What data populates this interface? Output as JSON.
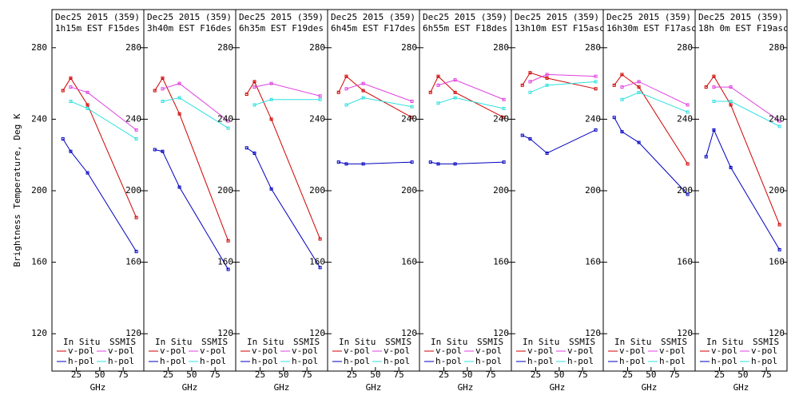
{
  "chart_data": [
    {
      "type": "line",
      "title": "Dec25 2015 (359)",
      "subtitle": "1h15m EST F15des",
      "ylabel": "Brightness Temperature, Deg K",
      "xlabel": "GHz",
      "xlim": [
        -1,
        97
      ],
      "xticks": [
        25,
        50,
        75
      ],
      "ylim": [
        100,
        300
      ],
      "yticks": [
        120,
        160,
        200,
        240,
        280
      ],
      "series_groups": [
        {
          "name": "In Situ",
          "series": [
            {
              "name": "v-pol",
              "color": "#d00000",
              "x": [
                10.7,
                19,
                37,
                89
              ],
              "values": [
                256,
                263,
                248,
                185
              ]
            },
            {
              "name": "h-pol",
              "color": "#0000c0",
              "x": [
                10.7,
                19,
                37,
                89
              ],
              "values": [
                229,
                222,
                210,
                166
              ]
            }
          ]
        },
        {
          "name": "SSMIS",
          "series": [
            {
              "name": "v-pol",
              "color": "#e040e0",
              "x": [
                19,
                37,
                89
              ],
              "values": [
                258,
                255,
                234
              ]
            },
            {
              "name": "h-pol",
              "color": "#30e0e0",
              "x": [
                19,
                37,
                89
              ],
              "values": [
                250,
                246,
                229
              ]
            }
          ]
        }
      ]
    },
    {
      "type": "line",
      "title": "Dec25 2015 (359)",
      "subtitle": "3h40m EST F16des",
      "xlabel": "GHz",
      "xlim": [
        -1,
        97
      ],
      "xticks": [
        25,
        50,
        75
      ],
      "ylim": [
        100,
        300
      ],
      "yticks": [
        120,
        160,
        200,
        240,
        280
      ],
      "series_groups": [
        {
          "name": "In Situ",
          "series": [
            {
              "name": "v-pol",
              "color": "#d00000",
              "x": [
                10.7,
                19,
                37,
                89
              ],
              "values": [
                256,
                263,
                243,
                172
              ]
            },
            {
              "name": "h-pol",
              "color": "#0000c0",
              "x": [
                10.7,
                19,
                37,
                89
              ],
              "values": [
                223,
                222,
                202,
                156
              ]
            }
          ]
        },
        {
          "name": "SSMIS",
          "series": [
            {
              "name": "v-pol",
              "color": "#e040e0",
              "x": [
                19,
                37,
                89
              ],
              "values": [
                257,
                260,
                239
              ]
            },
            {
              "name": "h-pol",
              "color": "#30e0e0",
              "x": [
                19,
                37,
                89
              ],
              "values": [
                250,
                252,
                235
              ]
            }
          ]
        }
      ]
    },
    {
      "type": "line",
      "title": "Dec25 2015 (359)",
      "subtitle": "6h35m EST F19des",
      "xlabel": "GHz",
      "xlim": [
        -1,
        97
      ],
      "xticks": [
        25,
        50,
        75
      ],
      "ylim": [
        100,
        300
      ],
      "yticks": [
        120,
        160,
        200,
        240,
        280
      ],
      "series_groups": [
        {
          "name": "In Situ",
          "series": [
            {
              "name": "v-pol",
              "color": "#d00000",
              "x": [
                10.7,
                19,
                37,
                89
              ],
              "values": [
                254,
                261,
                240,
                173
              ]
            },
            {
              "name": "h-pol",
              "color": "#0000c0",
              "x": [
                10.7,
                19,
                37,
                89
              ],
              "values": [
                224,
                221,
                201,
                157
              ]
            }
          ]
        },
        {
          "name": "SSMIS",
          "series": [
            {
              "name": "v-pol",
              "color": "#e040e0",
              "x": [
                19,
                37,
                89
              ],
              "values": [
                258,
                260,
                253
              ]
            },
            {
              "name": "h-pol",
              "color": "#30e0e0",
              "x": [
                19,
                37,
                89
              ],
              "values": [
                248,
                251,
                251
              ]
            }
          ]
        }
      ]
    },
    {
      "type": "line",
      "title": "Dec25 2015 (359)",
      "subtitle": "6h45m EST F17des",
      "xlabel": "GHz",
      "xlim": [
        -1,
        97
      ],
      "xticks": [
        25,
        50,
        75
      ],
      "ylim": [
        100,
        300
      ],
      "yticks": [
        120,
        160,
        200,
        240,
        280
      ],
      "series_groups": [
        {
          "name": "In Situ",
          "series": [
            {
              "name": "v-pol",
              "color": "#d00000",
              "x": [
                10.7,
                19,
                37,
                89
              ],
              "values": [
                255,
                264,
                256,
                241
              ]
            },
            {
              "name": "h-pol",
              "color": "#0000c0",
              "x": [
                10.7,
                19,
                37,
                89
              ],
              "values": [
                216,
                215,
                215,
                216
              ]
            }
          ]
        },
        {
          "name": "SSMIS",
          "series": [
            {
              "name": "v-pol",
              "color": "#e040e0",
              "x": [
                19,
                37,
                89
              ],
              "values": [
                257,
                260,
                250
              ]
            },
            {
              "name": "h-pol",
              "color": "#30e0e0",
              "x": [
                19,
                37,
                89
              ],
              "values": [
                248,
                252,
                247
              ]
            }
          ]
        }
      ]
    },
    {
      "type": "line",
      "title": "Dec25 2015 (359)",
      "subtitle": "6h55m EST F18des",
      "xlabel": "GHz",
      "xlim": [
        -1,
        97
      ],
      "xticks": [
        25,
        50,
        75
      ],
      "ylim": [
        100,
        300
      ],
      "yticks": [
        120,
        160,
        200,
        240,
        280
      ],
      "series_groups": [
        {
          "name": "In Situ",
          "series": [
            {
              "name": "v-pol",
              "color": "#d00000",
              "x": [
                10.7,
                19,
                37,
                89
              ],
              "values": [
                255,
                264,
                255,
                241
              ]
            },
            {
              "name": "h-pol",
              "color": "#0000c0",
              "x": [
                10.7,
                19,
                37,
                89
              ],
              "values": [
                216,
                215,
                215,
                216
              ]
            }
          ]
        },
        {
          "name": "SSMIS",
          "series": [
            {
              "name": "v-pol",
              "color": "#e040e0",
              "x": [
                19,
                37,
                89
              ],
              "values": [
                259,
                262,
                251
              ]
            },
            {
              "name": "h-pol",
              "color": "#30e0e0",
              "x": [
                19,
                37,
                89
              ],
              "values": [
                249,
                252,
                246
              ]
            }
          ]
        }
      ]
    },
    {
      "type": "line",
      "title": "Dec25 2015 (359)",
      "subtitle": "13h10m EST F15asc",
      "xlabel": "GHz",
      "xlim": [
        -1,
        97
      ],
      "xticks": [
        25,
        50,
        75
      ],
      "ylim": [
        100,
        300
      ],
      "yticks": [
        120,
        160,
        200,
        240,
        280
      ],
      "series_groups": [
        {
          "name": "In Situ",
          "series": [
            {
              "name": "v-pol",
              "color": "#d00000",
              "x": [
                10.7,
                19,
                37,
                89
              ],
              "values": [
                259,
                266,
                263,
                257
              ]
            },
            {
              "name": "h-pol",
              "color": "#0000c0",
              "x": [
                10.7,
                19,
                37,
                89
              ],
              "values": [
                231,
                229,
                221,
                234
              ]
            }
          ]
        },
        {
          "name": "SSMIS",
          "series": [
            {
              "name": "v-pol",
              "color": "#e040e0",
              "x": [
                19,
                37,
                89
              ],
              "values": [
                261,
                265,
                264
              ]
            },
            {
              "name": "h-pol",
              "color": "#30e0e0",
              "x": [
                19,
                37,
                89
              ],
              "values": [
                255,
                259,
                261
              ]
            }
          ]
        }
      ]
    },
    {
      "type": "line",
      "title": "Dec25 2015 (359)",
      "subtitle": "16h30m EST F17asc",
      "xlabel": "GHz",
      "xlim": [
        -1,
        97
      ],
      "xticks": [
        25,
        50,
        75
      ],
      "ylim": [
        100,
        300
      ],
      "yticks": [
        120,
        160,
        200,
        240,
        280
      ],
      "series_groups": [
        {
          "name": "In Situ",
          "series": [
            {
              "name": "v-pol",
              "color": "#d00000",
              "x": [
                10.7,
                19,
                37,
                89
              ],
              "values": [
                259,
                265,
                258,
                215
              ]
            },
            {
              "name": "h-pol",
              "color": "#0000c0",
              "x": [
                10.7,
                19,
                37,
                89
              ],
              "values": [
                241,
                233,
                227,
                198
              ]
            }
          ]
        },
        {
          "name": "SSMIS",
          "series": [
            {
              "name": "v-pol",
              "color": "#e040e0",
              "x": [
                19,
                37,
                89
              ],
              "values": [
                258,
                261,
                248
              ]
            },
            {
              "name": "h-pol",
              "color": "#30e0e0",
              "x": [
                19,
                37,
                89
              ],
              "values": [
                251,
                255,
                244
              ]
            }
          ]
        }
      ]
    },
    {
      "type": "line",
      "title": "Dec25 2015 (359)",
      "subtitle": "18h 0m EST F19asc",
      "xlabel": "GHz",
      "xlim": [
        -1,
        97
      ],
      "xticks": [
        25,
        50,
        75
      ],
      "ylim": [
        100,
        300
      ],
      "yticks": [
        120,
        160,
        200,
        240,
        280
      ],
      "series_groups": [
        {
          "name": "In Situ",
          "series": [
            {
              "name": "v-pol",
              "color": "#d00000",
              "x": [
                10.7,
                19,
                37,
                89
              ],
              "values": [
                258,
                264,
                248,
                181
              ]
            },
            {
              "name": "h-pol",
              "color": "#0000c0",
              "x": [
                10.7,
                19,
                37,
                89
              ],
              "values": [
                219,
                234,
                213,
                167
              ]
            }
          ]
        },
        {
          "name": "SSMIS",
          "series": [
            {
              "name": "v-pol",
              "color": "#e040e0",
              "x": [
                19,
                37,
                89
              ],
              "values": [
                258,
                258,
                239
              ]
            },
            {
              "name": "h-pol",
              "color": "#30e0e0",
              "x": [
                19,
                37,
                89
              ],
              "values": [
                250,
                250,
                236
              ]
            }
          ]
        }
      ]
    }
  ]
}
